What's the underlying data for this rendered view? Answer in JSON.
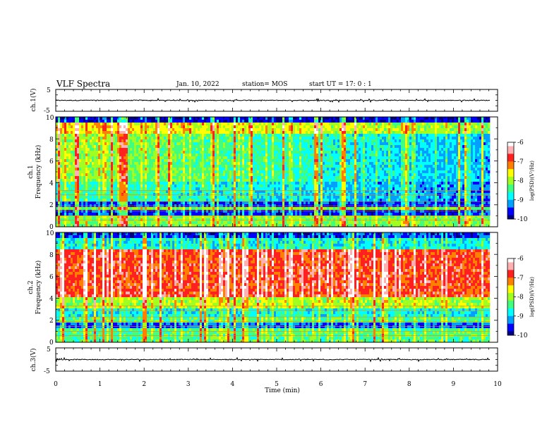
{
  "header": {
    "title": "VLF Spectra",
    "date": "Jan. 10, 2022",
    "station": "station= MOS",
    "start": "start  UT =   17: 0  : 1"
  },
  "colors": {
    "colormap": [
      "#000080",
      "#0000ff",
      "#00a0ff",
      "#00ffff",
      "#40ff80",
      "#a0ff20",
      "#ffff00",
      "#ff8000",
      "#ff2020",
      "#ffb0b0",
      "#ffffff"
    ]
  },
  "chart_data": [
    {
      "type": "line",
      "name": "waveform-ch1",
      "ylabel": "ch.1(V)",
      "ylim": [
        -5,
        5
      ],
      "yticks": [
        "5",
        "-5"
      ],
      "xlim": [
        0,
        10
      ],
      "level": 0
    },
    {
      "type": "heatmap",
      "name": "spectrogram-ch1",
      "ylabel": "ch.1\nFrequency (kHz)",
      "ylim": [
        0,
        10
      ],
      "yticks": [
        "0",
        "2",
        "4",
        "6",
        "8",
        "10"
      ],
      "xlim": [
        0,
        10
      ],
      "data_end_min": 9.83,
      "colorbar": {
        "label": "log(PSD)(V²/Hz)",
        "range": [
          -10,
          -6
        ],
        "ticks": [
          "-6",
          "-7",
          "-8",
          "-9",
          "-10"
        ]
      }
    },
    {
      "type": "heatmap",
      "name": "spectrogram-ch2",
      "ylabel": "ch.2\nFrequency (kHz)",
      "ylim": [
        0,
        10
      ],
      "yticks": [
        "0",
        "2",
        "4",
        "6",
        "8",
        "10"
      ],
      "xlim": [
        0,
        10
      ],
      "data_end_min": 9.83,
      "colorbar": {
        "label": "log(PSD)(V²/Hz)",
        "range": [
          -10,
          -6
        ],
        "ticks": [
          "-6",
          "-7",
          "-8",
          "-9",
          "-10"
        ]
      }
    },
    {
      "type": "line",
      "name": "waveform-ch3",
      "ylabel": "ch.3(V)",
      "ylim": [
        -5,
        5
      ],
      "yticks": [
        "5",
        "-5"
      ],
      "xlim": [
        0,
        10
      ],
      "xlabel": "Time (min)",
      "xticks": [
        "0",
        "1",
        "2",
        "3",
        "4",
        "5",
        "6",
        "7",
        "8",
        "9",
        "10"
      ],
      "level": 0
    }
  ]
}
